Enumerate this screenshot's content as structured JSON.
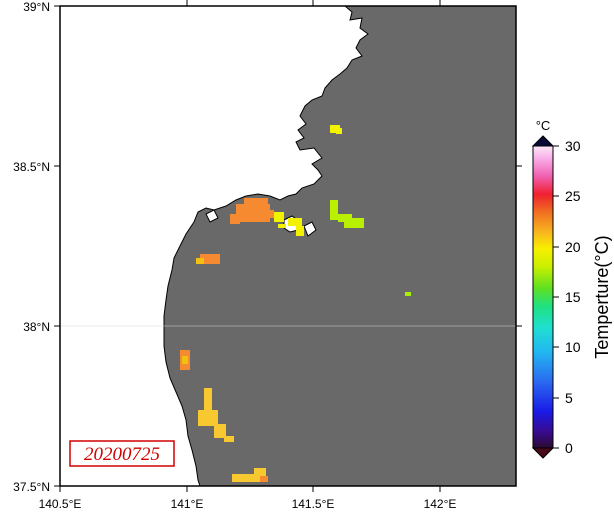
{
  "map": {
    "date_label": "20200725",
    "lon_ticks": [
      "140.5°E",
      "141°E",
      "141.5°E",
      "142°E"
    ],
    "lat_ticks": [
      "39°N",
      "38.5°N",
      "38°N",
      "37.5°N"
    ],
    "land_color": "#ffffff",
    "sea_color": "#696969",
    "lon_range": [
      140.5,
      142.3
    ],
    "lat_range": [
      37.5,
      39.0
    ]
  },
  "colorbar": {
    "unit": "°C",
    "title": "Temperture(°C)",
    "tick_labels": [
      "0",
      "5",
      "10",
      "15",
      "20",
      "25",
      "30"
    ],
    "range": [
      0,
      30
    ]
  }
}
